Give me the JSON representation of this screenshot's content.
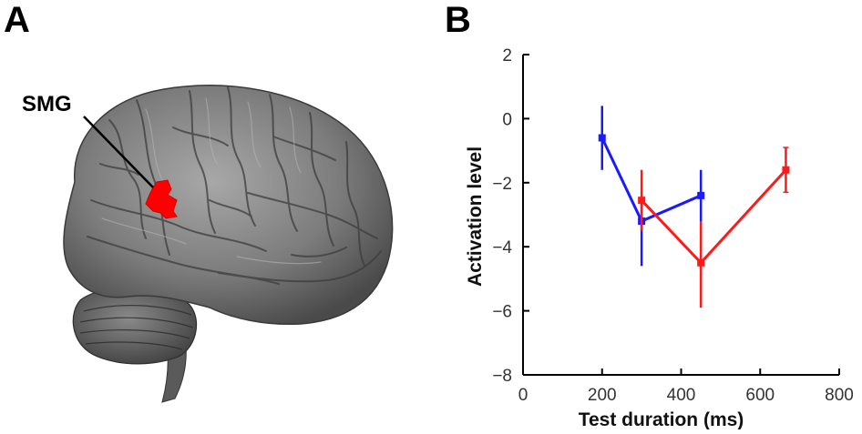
{
  "panels": {
    "a_label": "A",
    "b_label": "B"
  },
  "brain": {
    "region_label": "SMG",
    "region_color": "#ff0000"
  },
  "chart_data": {
    "type": "line",
    "xlabel": "Test duration (ms)",
    "ylabel": "Activation level",
    "xlim": [
      0,
      800
    ],
    "ylim": [
      -8,
      2
    ],
    "xticks": [
      0,
      200,
      400,
      600,
      800
    ],
    "yticks": [
      2,
      0,
      -2,
      -4,
      -6,
      -8
    ],
    "grid": false,
    "series": [
      {
        "color": "#1a1aff",
        "points": [
          {
            "x": 200,
            "y": -0.6,
            "err_low": -1.6,
            "err_high": 0.4
          },
          {
            "x": 300,
            "y": -3.2,
            "err_low": -4.6,
            "err_high": -2.5
          },
          {
            "x": 450,
            "y": -2.4,
            "err_low": -3.2,
            "err_high": -1.6
          }
        ]
      },
      {
        "color": "#ff1a1a",
        "points": [
          {
            "x": 300,
            "y": -2.55,
            "err_low": -3.5,
            "err_high": -1.6
          },
          {
            "x": 450,
            "y": -4.5,
            "err_low": -5.9,
            "err_high": -3.2
          },
          {
            "x": 665,
            "y": -1.6,
            "err_low": -2.3,
            "err_high": -0.9
          }
        ]
      }
    ]
  }
}
